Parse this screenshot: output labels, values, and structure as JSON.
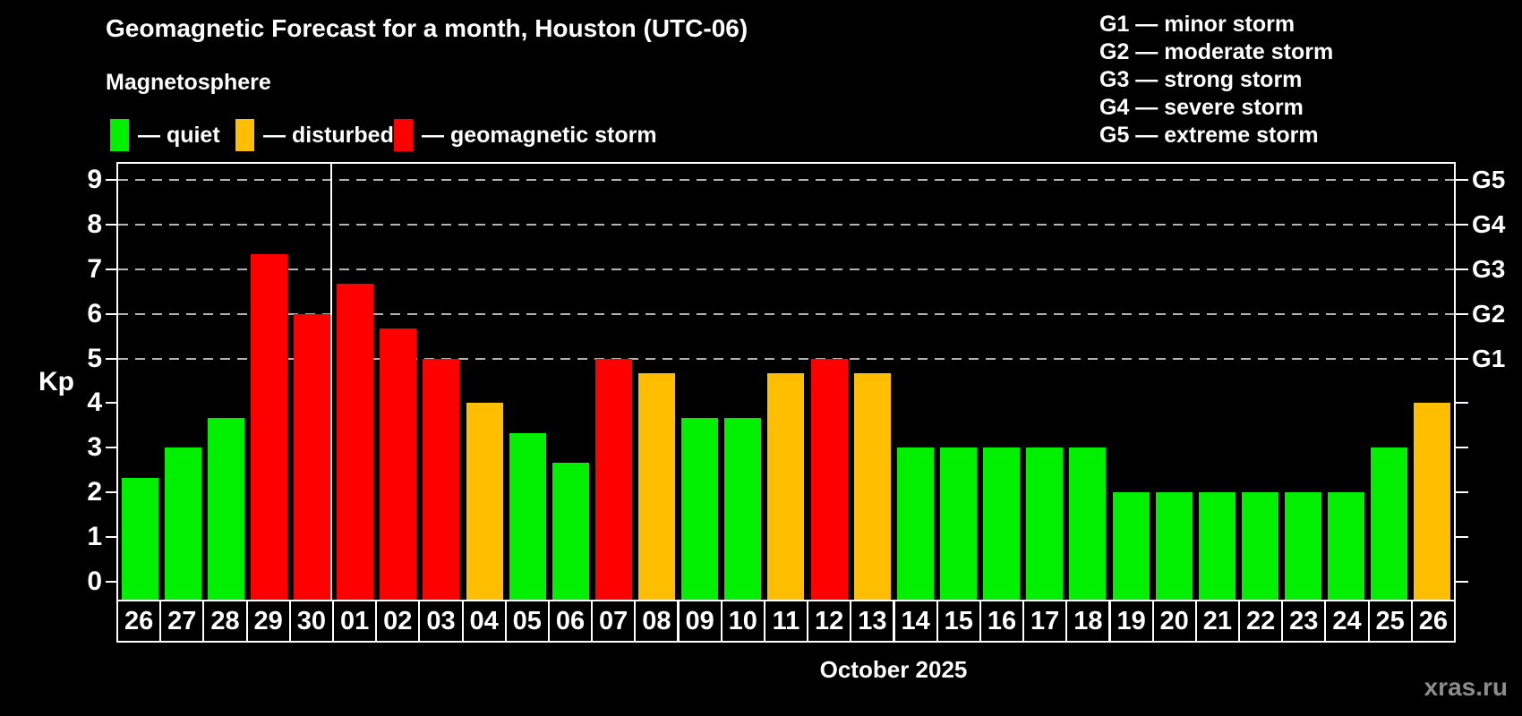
{
  "header": {
    "title": "Geomagnetic Forecast for a month, Houston (UTC-06)",
    "subtitle": "Magnetosphere"
  },
  "status_legend": [
    {
      "label": "— quiet",
      "status": "quiet"
    },
    {
      "label": "— disturbed",
      "status": "disturbed"
    },
    {
      "label": "— geomagnetic storm",
      "status": "storm"
    }
  ],
  "g_legend": [
    "G1 — minor storm",
    "G2 — moderate storm",
    "G3 — strong storm",
    "G4 — severe storm",
    "G5 — extreme storm"
  ],
  "colors": {
    "quiet": "#00f000",
    "disturbed": "#ffbe00",
    "storm": "#ff0000",
    "axis": "#ffffff",
    "grid": "#b4b4b4",
    "background": "#000000",
    "watermark": "#8c8c8c"
  },
  "axes": {
    "y_title": "Kp",
    "y_ticks": [
      0,
      1,
      2,
      3,
      4,
      5,
      6,
      7,
      8,
      9
    ],
    "g_levels": [
      {
        "label": "G1",
        "kp": 5
      },
      {
        "label": "G2",
        "kp": 6
      },
      {
        "label": "G3",
        "kp": 7
      },
      {
        "label": "G4",
        "kp": 8
      },
      {
        "label": "G5",
        "kp": 9
      }
    ],
    "x_title": "October 2025"
  },
  "watermark": "xras.ru",
  "chart_data": {
    "type": "bar",
    "title": "Geomagnetic Forecast for a month, Houston (UTC-06)",
    "subtitle": "Magnetosphere",
    "xlabel": "October 2025",
    "ylabel": "Kp",
    "ylim": [
      0,
      9
    ],
    "grid": "dashed horizontal lines at Kp 5,6,7,8,9 (G1–G5)",
    "legend_position": "top",
    "month_separator_after_index": 4,
    "categories": [
      "26",
      "27",
      "28",
      "29",
      "30",
      "01",
      "02",
      "03",
      "04",
      "05",
      "06",
      "07",
      "08",
      "09",
      "10",
      "11",
      "12",
      "13",
      "14",
      "15",
      "16",
      "17",
      "18",
      "19",
      "20",
      "21",
      "22",
      "23",
      "24",
      "25",
      "26"
    ],
    "values": [
      2.33,
      3,
      3.67,
      7.33,
      6,
      6.67,
      5.67,
      5,
      4,
      3.33,
      2.67,
      5,
      4.67,
      3.67,
      3.67,
      4.67,
      5,
      4.67,
      3,
      3,
      3,
      3,
      3,
      2,
      2,
      2,
      2,
      2,
      2,
      3,
      4
    ],
    "statuses": [
      "quiet",
      "quiet",
      "quiet",
      "storm",
      "storm",
      "storm",
      "storm",
      "storm",
      "disturbed",
      "quiet",
      "quiet",
      "storm",
      "disturbed",
      "quiet",
      "quiet",
      "disturbed",
      "storm",
      "disturbed",
      "quiet",
      "quiet",
      "quiet",
      "quiet",
      "quiet",
      "quiet",
      "quiet",
      "quiet",
      "quiet",
      "quiet",
      "quiet",
      "quiet",
      "disturbed"
    ]
  }
}
